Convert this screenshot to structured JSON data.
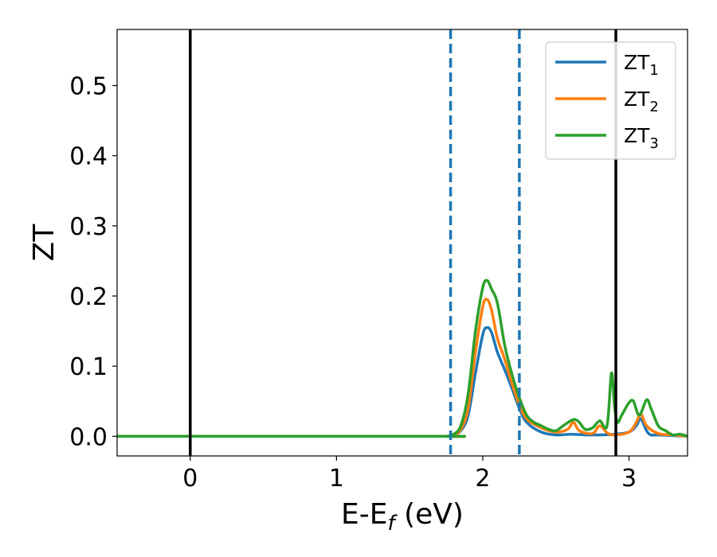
{
  "chart_data": {
    "type": "line",
    "title": "",
    "xlabel": {
      "main": "E-E",
      "sub": "f",
      "unit": " (eV)"
    },
    "ylabel": "ZT",
    "xlim": [
      -0.5,
      3.4
    ],
    "ylim": [
      -0.028,
      0.58
    ],
    "xticks": [
      0,
      1,
      2,
      3
    ],
    "xtick_labels": [
      "0",
      "1",
      "2",
      "3"
    ],
    "yticks": [
      0.0,
      0.1,
      0.2,
      0.3,
      0.4,
      0.5
    ],
    "ytick_labels": [
      "0.0",
      "0.1",
      "0.2",
      "0.3",
      "0.4",
      "0.5"
    ],
    "grid": false,
    "legend_position": "top-right",
    "vlines_solid": [
      0.0,
      2.91
    ],
    "vlines_dashed": [
      1.78,
      2.25
    ],
    "solid_line_color": "#000000",
    "dashed_line_color": "#1f77b4",
    "series": [
      {
        "name": "ZT",
        "name_sub": "1",
        "color": "#1f77b4",
        "x": [
          -0.5,
          1.7,
          1.75,
          1.8,
          1.85,
          1.9,
          1.95,
          2.0,
          2.03,
          2.06,
          2.1,
          2.15,
          2.2,
          2.25,
          2.3,
          2.4,
          2.5,
          2.6,
          2.7,
          2.8,
          2.9,
          3.0,
          3.05,
          3.08,
          3.12,
          3.15,
          3.2,
          3.3,
          3.4
        ],
        "y": [
          0.0,
          0.0,
          0.0,
          0.002,
          0.008,
          0.03,
          0.09,
          0.145,
          0.155,
          0.148,
          0.12,
          0.095,
          0.068,
          0.04,
          0.02,
          0.006,
          0.002,
          0.003,
          0.002,
          0.002,
          0.003,
          0.006,
          0.015,
          0.025,
          0.008,
          0.002,
          0.002,
          0.001,
          0.0
        ]
      },
      {
        "name": "ZT",
        "name_sub": "2",
        "color": "#ff7f0e",
        "x": [
          -0.5,
          1.7,
          1.75,
          1.8,
          1.85,
          1.9,
          1.95,
          2.0,
          2.03,
          2.06,
          2.1,
          2.15,
          2.2,
          2.25,
          2.3,
          2.4,
          2.5,
          2.58,
          2.62,
          2.66,
          2.75,
          2.8,
          2.85,
          2.9,
          3.0,
          3.05,
          3.08,
          3.12,
          3.2,
          3.3,
          3.4
        ],
        "y": [
          0.0,
          0.0,
          0.0,
          0.002,
          0.01,
          0.04,
          0.12,
          0.185,
          0.195,
          0.18,
          0.14,
          0.11,
          0.075,
          0.045,
          0.025,
          0.012,
          0.006,
          0.01,
          0.02,
          0.008,
          0.004,
          0.015,
          0.005,
          0.002,
          0.006,
          0.02,
          0.032,
          0.015,
          0.004,
          0.002,
          0.0
        ]
      },
      {
        "name": "ZT",
        "name_sub": "3",
        "color": "#2ca02c",
        "x": [
          -0.5,
          1.7,
          1.75,
          1.8,
          1.85,
          1.9,
          1.95,
          2.0,
          2.03,
          2.06,
          2.1,
          2.15,
          2.2,
          2.25,
          2.3,
          2.35,
          2.4,
          2.45,
          2.5,
          2.55,
          2.6,
          2.63,
          2.66,
          2.7,
          2.75,
          2.8,
          2.85,
          2.88,
          2.9,
          2.92,
          2.95,
          3.0,
          3.03,
          3.07,
          3.12,
          3.15,
          3.2,
          3.25,
          3.3,
          3.35,
          3.4
        ],
        "y": [
          0.0,
          0.0,
          0.0,
          0.003,
          0.015,
          0.06,
          0.15,
          0.212,
          0.222,
          0.21,
          0.19,
          0.13,
          0.088,
          0.055,
          0.03,
          0.02,
          0.015,
          0.01,
          0.008,
          0.015,
          0.022,
          0.024,
          0.02,
          0.01,
          0.012,
          0.022,
          0.015,
          0.09,
          0.045,
          0.02,
          0.03,
          0.048,
          0.05,
          0.03,
          0.052,
          0.04,
          0.015,
          0.008,
          0.002,
          0.003,
          0.0
        ]
      }
    ]
  }
}
